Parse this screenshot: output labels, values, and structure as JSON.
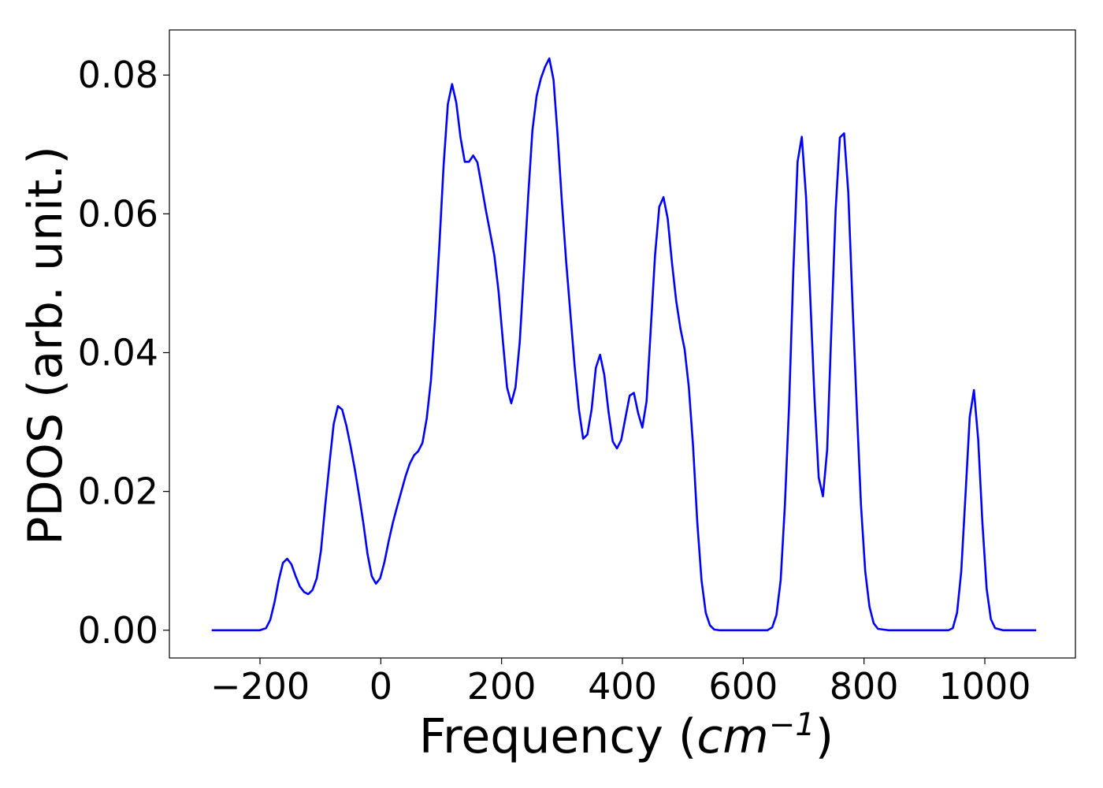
{
  "chart_data": {
    "type": "line",
    "title": "",
    "xlabel": {
      "prefix": "Frequency (",
      "unit_base": "cm",
      "unit_exponent": "−1",
      "suffix": ")"
    },
    "ylabel": "PDOS (arb. unit.)",
    "xlim": [
      -350,
      1150
    ],
    "ylim": [
      -0.004,
      0.0865
    ],
    "x_ticks": [
      -200,
      0,
      200,
      400,
      600,
      800,
      1000
    ],
    "x_tick_labels": [
      "−200",
      "0",
      "200",
      "400",
      "600",
      "800",
      "1000"
    ],
    "y_ticks": [
      0.0,
      0.02,
      0.04,
      0.06,
      0.08
    ],
    "y_tick_labels": [
      "0.00",
      "0.02",
      "0.04",
      "0.06",
      "0.08"
    ],
    "grid": false,
    "legend": "none",
    "series": [
      {
        "color": "#0000ff",
        "x": [
          -280,
          -250,
          -200,
          -190,
          -183,
          -176,
          -169,
          -162,
          -155,
          -148,
          -141,
          -134,
          -127,
          -120,
          -113,
          -106,
          -99,
          -92,
          -85,
          -78,
          -71,
          -64,
          -57,
          -50,
          -43,
          -36,
          -29,
          -22,
          -15,
          -8,
          -1,
          6,
          13,
          20,
          27,
          34,
          41,
          48,
          55,
          62,
          69,
          76,
          83,
          90,
          97,
          104,
          111,
          118,
          125,
          132,
          139,
          146,
          153,
          160,
          167,
          174,
          181,
          188,
          195,
          202,
          209,
          216,
          223,
          230,
          237,
          244,
          251,
          258,
          265,
          272,
          279,
          286,
          293,
          300,
          307,
          314,
          321,
          328,
          335,
          342,
          349,
          356,
          363,
          370,
          377,
          384,
          391,
          398,
          405,
          412,
          419,
          426,
          433,
          440,
          447,
          454,
          461,
          468,
          475,
          482,
          489,
          496,
          503,
          510,
          517,
          524,
          531,
          538,
          545,
          552,
          560,
          580,
          600,
          620,
          640,
          648,
          655,
          662,
          669,
          676,
          683,
          690,
          697,
          704,
          711,
          718,
          725,
          732,
          739,
          746,
          753,
          760,
          767,
          774,
          781,
          788,
          795,
          802,
          809,
          816,
          823,
          840,
          880,
          920,
          940,
          947,
          954,
          961,
          968,
          975,
          982,
          989,
          996,
          1003,
          1010,
          1017,
          1030,
          1060,
          1085
        ],
        "y": [
          0.0,
          0.0,
          0.0,
          0.0003,
          0.0015,
          0.004,
          0.0072,
          0.0097,
          0.0103,
          0.0095,
          0.0078,
          0.0063,
          0.0055,
          0.0052,
          0.0058,
          0.0075,
          0.0115,
          0.018,
          0.024,
          0.0297,
          0.0323,
          0.0318,
          0.0295,
          0.0265,
          0.0232,
          0.0195,
          0.0155,
          0.011,
          0.0078,
          0.0067,
          0.0075,
          0.0098,
          0.0128,
          0.0155,
          0.0178,
          0.02,
          0.0222,
          0.024,
          0.0252,
          0.0258,
          0.027,
          0.0305,
          0.036,
          0.045,
          0.0555,
          0.067,
          0.0758,
          0.0787,
          0.076,
          0.071,
          0.0675,
          0.0675,
          0.0684,
          0.0674,
          0.064,
          0.0605,
          0.0573,
          0.054,
          0.0488,
          0.0418,
          0.035,
          0.0327,
          0.035,
          0.0415,
          0.0518,
          0.0625,
          0.072,
          0.077,
          0.0795,
          0.0812,
          0.0824,
          0.0793,
          0.071,
          0.0615,
          0.053,
          0.0455,
          0.038,
          0.0318,
          0.0276,
          0.0282,
          0.0318,
          0.0378,
          0.0397,
          0.0368,
          0.0315,
          0.0272,
          0.0262,
          0.0274,
          0.0306,
          0.0338,
          0.0342,
          0.0313,
          0.0292,
          0.033,
          0.0435,
          0.054,
          0.061,
          0.0624,
          0.0593,
          0.053,
          0.0475,
          0.0435,
          0.0405,
          0.035,
          0.0265,
          0.0155,
          0.0072,
          0.0025,
          0.0007,
          0.0001,
          0.0,
          0.0,
          0.0,
          0.0,
          0.0,
          0.0004,
          0.0022,
          0.0072,
          0.018,
          0.0325,
          0.0518,
          0.0675,
          0.0711,
          0.0625,
          0.048,
          0.0335,
          0.022,
          0.0193,
          0.026,
          0.0435,
          0.0605,
          0.071,
          0.0716,
          0.063,
          0.047,
          0.032,
          0.018,
          0.0085,
          0.0034,
          0.001,
          0.0002,
          0.0,
          0.0,
          0.0,
          0.0,
          0.0003,
          0.0025,
          0.0085,
          0.0195,
          0.0307,
          0.0346,
          0.0275,
          0.0155,
          0.006,
          0.0016,
          0.0003,
          0.0,
          0.0,
          0.0
        ]
      }
    ]
  }
}
